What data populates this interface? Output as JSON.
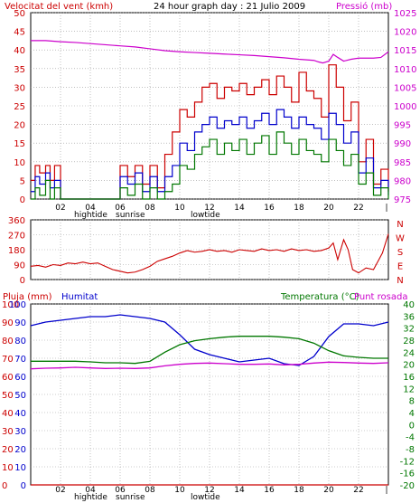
{
  "chart_data": [
    {
      "type": "line",
      "title": "24 hour graph day : 21 Julio 2009",
      "left_axis_title": "Velocitat del vent (kmh)",
      "right_axis_title": "Pressió (mb)",
      "left_ticks": [
        "0",
        "5",
        "10",
        "15",
        "20",
        "25",
        "30",
        "35",
        "40",
        "45",
        "50"
      ],
      "right_ticks": [
        "975",
        "980",
        "985",
        "990",
        "995",
        "1000",
        "1005",
        "1010",
        "1015",
        "1020",
        "1025"
      ],
      "ylim_left": [
        0,
        50
      ],
      "ylim_right": [
        975,
        1025
      ],
      "x_ticks": [
        "02",
        "04",
        "06",
        "08",
        "10",
        "12",
        "14",
        "16",
        "18",
        "20",
        "22"
      ],
      "x_range_hours": [
        0,
        24
      ],
      "markers": [
        "hightide",
        "sunrise",
        "lowtide"
      ],
      "grid": true,
      "series": [
        {
          "axis": "right",
          "color": "#cc00cc",
          "x": [
            0,
            1,
            2,
            3,
            4,
            5,
            6,
            7,
            8,
            9,
            10,
            11,
            12,
            13,
            14,
            15,
            16,
            17,
            18,
            19,
            19.3,
            19.6,
            20,
            20.3,
            20.6,
            21,
            21.5,
            22,
            22.5,
            23,
            23.5,
            24
          ],
          "values": [
            1017.5,
            1017.5,
            1017.2,
            1017.0,
            1016.7,
            1016.4,
            1016.1,
            1015.8,
            1015.3,
            1014.8,
            1014.5,
            1014.3,
            1014.1,
            1013.9,
            1013.7,
            1013.5,
            1013.2,
            1012.9,
            1012.5,
            1012.2,
            1011.8,
            1011.5,
            1012.0,
            1013.8,
            1013.0,
            1012.0,
            1012.5,
            1012.8,
            1012.8,
            1012.8,
            1013.0,
            1014.5
          ]
        },
        {
          "axis": "left",
          "color": "#cc0000",
          "x": [
            0,
            0.3,
            0.6,
            1,
            1.3,
            1.6,
            2,
            2.5,
            3,
            4,
            5,
            6,
            6.5,
            7,
            7.5,
            8,
            8.5,
            9,
            9.5,
            10,
            10.5,
            11,
            11.5,
            12,
            12.5,
            13,
            13.5,
            14,
            14.5,
            15,
            15.5,
            16,
            16.5,
            17,
            17.5,
            18,
            18.5,
            19,
            19.5,
            20,
            20.5,
            21,
            21.5,
            22,
            22.5,
            23,
            23.5,
            24
          ],
          "values": [
            5,
            9,
            7,
            9,
            5,
            9,
            0,
            0,
            0,
            0,
            0,
            9,
            6,
            9,
            4,
            9,
            3,
            12,
            18,
            24,
            22,
            26,
            30,
            31,
            27,
            30,
            29,
            31,
            28,
            30,
            32,
            28,
            33,
            30,
            26,
            34,
            29,
            27,
            22,
            36,
            30,
            21,
            26,
            10,
            16,
            4,
            8,
            2
          ]
        },
        {
          "axis": "left",
          "color": "#0000cc",
          "x": [
            0,
            0.3,
            0.6,
            1,
            1.3,
            1.6,
            2,
            2.5,
            3,
            4,
            5,
            6,
            6.5,
            7,
            7.5,
            8,
            8.5,
            9,
            9.5,
            10,
            10.5,
            11,
            11.5,
            12,
            12.5,
            13,
            13.5,
            14,
            14.5,
            15,
            15.5,
            16,
            16.5,
            17,
            17.5,
            18,
            18.5,
            19,
            19.5,
            20,
            20.5,
            21,
            21.5,
            22,
            22.5,
            23,
            23.5,
            24
          ],
          "values": [
            2,
            6,
            4,
            7,
            3,
            5,
            0,
            0,
            0,
            0,
            0,
            6,
            4,
            7,
            2,
            6,
            2,
            6,
            9,
            15,
            13,
            18,
            20,
            22,
            19,
            21,
            20,
            22,
            19,
            21,
            23,
            20,
            24,
            22,
            19,
            22,
            20,
            19,
            16,
            23,
            20,
            15,
            18,
            7,
            11,
            3,
            5,
            1
          ]
        },
        {
          "axis": "left",
          "color": "#007700",
          "x": [
            0,
            0.3,
            0.6,
            1,
            1.3,
            1.6,
            2,
            2.5,
            3,
            4,
            5,
            6,
            6.5,
            7,
            7.5,
            8,
            8.5,
            9,
            9.5,
            10,
            10.5,
            11,
            11.5,
            12,
            12.5,
            13,
            13.5,
            14,
            14.5,
            15,
            15.5,
            16,
            16.5,
            17,
            17.5,
            18,
            18.5,
            19,
            19.5,
            20,
            20.5,
            21,
            21.5,
            22,
            22.5,
            23,
            23.5,
            24
          ],
          "values": [
            0,
            3,
            1,
            5,
            0,
            3,
            0,
            0,
            0,
            0,
            0,
            3,
            1,
            4,
            0,
            3,
            0,
            2,
            4,
            9,
            8,
            12,
            14,
            16,
            12,
            15,
            13,
            16,
            12,
            15,
            17,
            12,
            18,
            15,
            12,
            16,
            13,
            12,
            10,
            16,
            13,
            9,
            12,
            4,
            7,
            1,
            3,
            0
          ]
        }
      ]
    },
    {
      "type": "line",
      "left_ticks": [
        "0",
        "90",
        "180",
        "270",
        "360"
      ],
      "right_ticks": [
        "N",
        "W",
        "S",
        "E",
        "N"
      ],
      "ylim": [
        0,
        360
      ],
      "series": [
        {
          "color": "#cc0000",
          "x": [
            0,
            0.5,
            1,
            1.5,
            2,
            2.5,
            3,
            3.5,
            4,
            4.5,
            5,
            5.5,
            6,
            6.5,
            7,
            7.5,
            8,
            8.5,
            9,
            9.5,
            10,
            10.5,
            11,
            11.5,
            12,
            12.5,
            13,
            13.5,
            14,
            14.5,
            15,
            15.5,
            16,
            16.5,
            17,
            17.5,
            18,
            18.5,
            19,
            19.5,
            20,
            20.3,
            20.6,
            21,
            21.3,
            21.6,
            22,
            22.5,
            23,
            23.3,
            23.6,
            24
          ],
          "values": [
            80,
            85,
            75,
            90,
            85,
            100,
            95,
            105,
            95,
            100,
            80,
            60,
            50,
            40,
            45,
            60,
            80,
            110,
            125,
            140,
            160,
            175,
            165,
            170,
            180,
            170,
            175,
            165,
            180,
            175,
            170,
            185,
            175,
            180,
            170,
            185,
            175,
            180,
            170,
            175,
            190,
            220,
            120,
            240,
            180,
            60,
            40,
            70,
            60,
            110,
            160,
            275
          ]
        }
      ]
    },
    {
      "type": "line",
      "left_axis_titles": [
        "Pluja (mm)",
        "Humitat"
      ],
      "right_axis_titles": [
        "Temperatura (°C)",
        "Punt rosada"
      ],
      "left_ticks_rain": [
        "0",
        "10",
        "20",
        "30",
        "40",
        "50",
        "60",
        "70",
        "80",
        "90",
        "100"
      ],
      "left_ticks_humidity": [
        "0",
        "10",
        "20",
        "30",
        "40",
        "50",
        "60",
        "70",
        "80",
        "90",
        "100"
      ],
      "right_ticks": [
        "-20",
        "-16",
        "-12",
        "-8",
        "-4",
        "0",
        "4",
        "8",
        "12",
        "16",
        "20",
        "24",
        "28",
        "32",
        "36",
        "40"
      ],
      "ylim_left": [
        0,
        100
      ],
      "ylim_right": [
        -20,
        40
      ],
      "x_ticks": [
        "02",
        "04",
        "06",
        "08",
        "10",
        "12",
        "14",
        "16",
        "18",
        "20",
        "22"
      ],
      "markers": [
        "hightide",
        "sunrise",
        "lowtide"
      ],
      "series": [
        {
          "name": "Humitat",
          "axis": "left",
          "color": "#0000cc",
          "x": [
            0,
            1,
            2,
            3,
            4,
            5,
            6,
            7,
            8,
            9,
            10,
            11,
            12,
            13,
            14,
            15,
            16,
            17,
            18,
            19,
            20,
            21,
            22,
            23,
            24
          ],
          "values": [
            88,
            90,
            91,
            92,
            93,
            93,
            94,
            93,
            92,
            90,
            83,
            75,
            72,
            70,
            68,
            69,
            70,
            67,
            66,
            71,
            82,
            89,
            89,
            88,
            90
          ]
        },
        {
          "name": "Temperatura",
          "axis": "right",
          "color": "#007700",
          "x": [
            0,
            1,
            2,
            3,
            4,
            5,
            6,
            7,
            8,
            9,
            10,
            11,
            12,
            13,
            14,
            15,
            16,
            17,
            18,
            19,
            20,
            21,
            22,
            23,
            24
          ],
          "values": [
            21,
            21,
            21,
            21,
            20.8,
            20.5,
            20.5,
            20.3,
            21,
            24,
            26.5,
            27.8,
            28.5,
            29,
            29.3,
            29.3,
            29.3,
            29,
            28.5,
            27,
            24.5,
            22.8,
            22.3,
            22,
            22
          ]
        },
        {
          "name": "Punt rosada",
          "axis": "right",
          "color": "#cc00cc",
          "x": [
            0,
            1,
            2,
            3,
            4,
            5,
            6,
            7,
            8,
            9,
            10,
            11,
            12,
            13,
            14,
            15,
            16,
            17,
            18,
            19,
            20,
            21,
            22,
            23,
            24
          ],
          "values": [
            18.5,
            18.7,
            18.8,
            19,
            18.8,
            18.6,
            18.7,
            18.6,
            18.8,
            19.5,
            20,
            20.3,
            20.4,
            20.2,
            20,
            20,
            20.1,
            19.8,
            20,
            20.4,
            20.7,
            20.6,
            20.4,
            20.3,
            20.5
          ]
        },
        {
          "name": "Pluja",
          "axis": "left",
          "color": "#cc0000",
          "x": [
            0,
            24
          ],
          "values": [
            0,
            0
          ]
        }
      ]
    }
  ]
}
